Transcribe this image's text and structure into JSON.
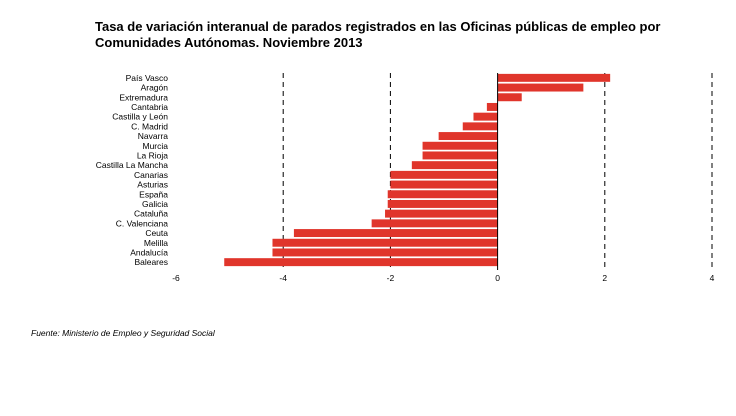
{
  "title_line1": "Tasa de variación interanual de parados registrados en las Oficinas públicas de empleo por",
  "title_line2": "Comunidades Autónomas.  Noviembre 2013",
  "source": "Fuente: Ministerio de Empleo y Seguridad Social",
  "bar_color": "#e0352b",
  "chart_data": {
    "type": "bar",
    "orientation": "horizontal",
    "title": "Tasa de variación interanual de parados registrados en las Oficinas públicas de empleo por Comunidades Autónomas.  Noviembre 2013",
    "categories": [
      "País Vasco",
      "Aragón",
      "Extremadura",
      "Cantabria",
      "Castilla y León",
      "C. Madrid",
      "Navarra",
      "Murcia",
      "La Rioja",
      "Castilla La Mancha",
      "Canarias",
      "Asturias",
      "España",
      "Galicia",
      "Cataluña",
      "C. Valenciana",
      "Ceuta",
      "Melilla",
      "Andalucía",
      "Baleares"
    ],
    "values": [
      2.1,
      1.6,
      0.45,
      -0.2,
      -0.45,
      -0.65,
      -1.1,
      -1.4,
      -1.4,
      -1.6,
      -2.0,
      -2.0,
      -2.05,
      -2.05,
      -2.1,
      -2.35,
      -3.8,
      -4.2,
      -4.2,
      -5.1
    ],
    "xlim": [
      -6,
      4
    ],
    "xticks": [
      -6,
      -4,
      -2,
      0,
      2,
      4
    ],
    "xlabel": "",
    "ylabel": "",
    "grid": "dashed vertical lines at -4, -2, 2, 4"
  }
}
